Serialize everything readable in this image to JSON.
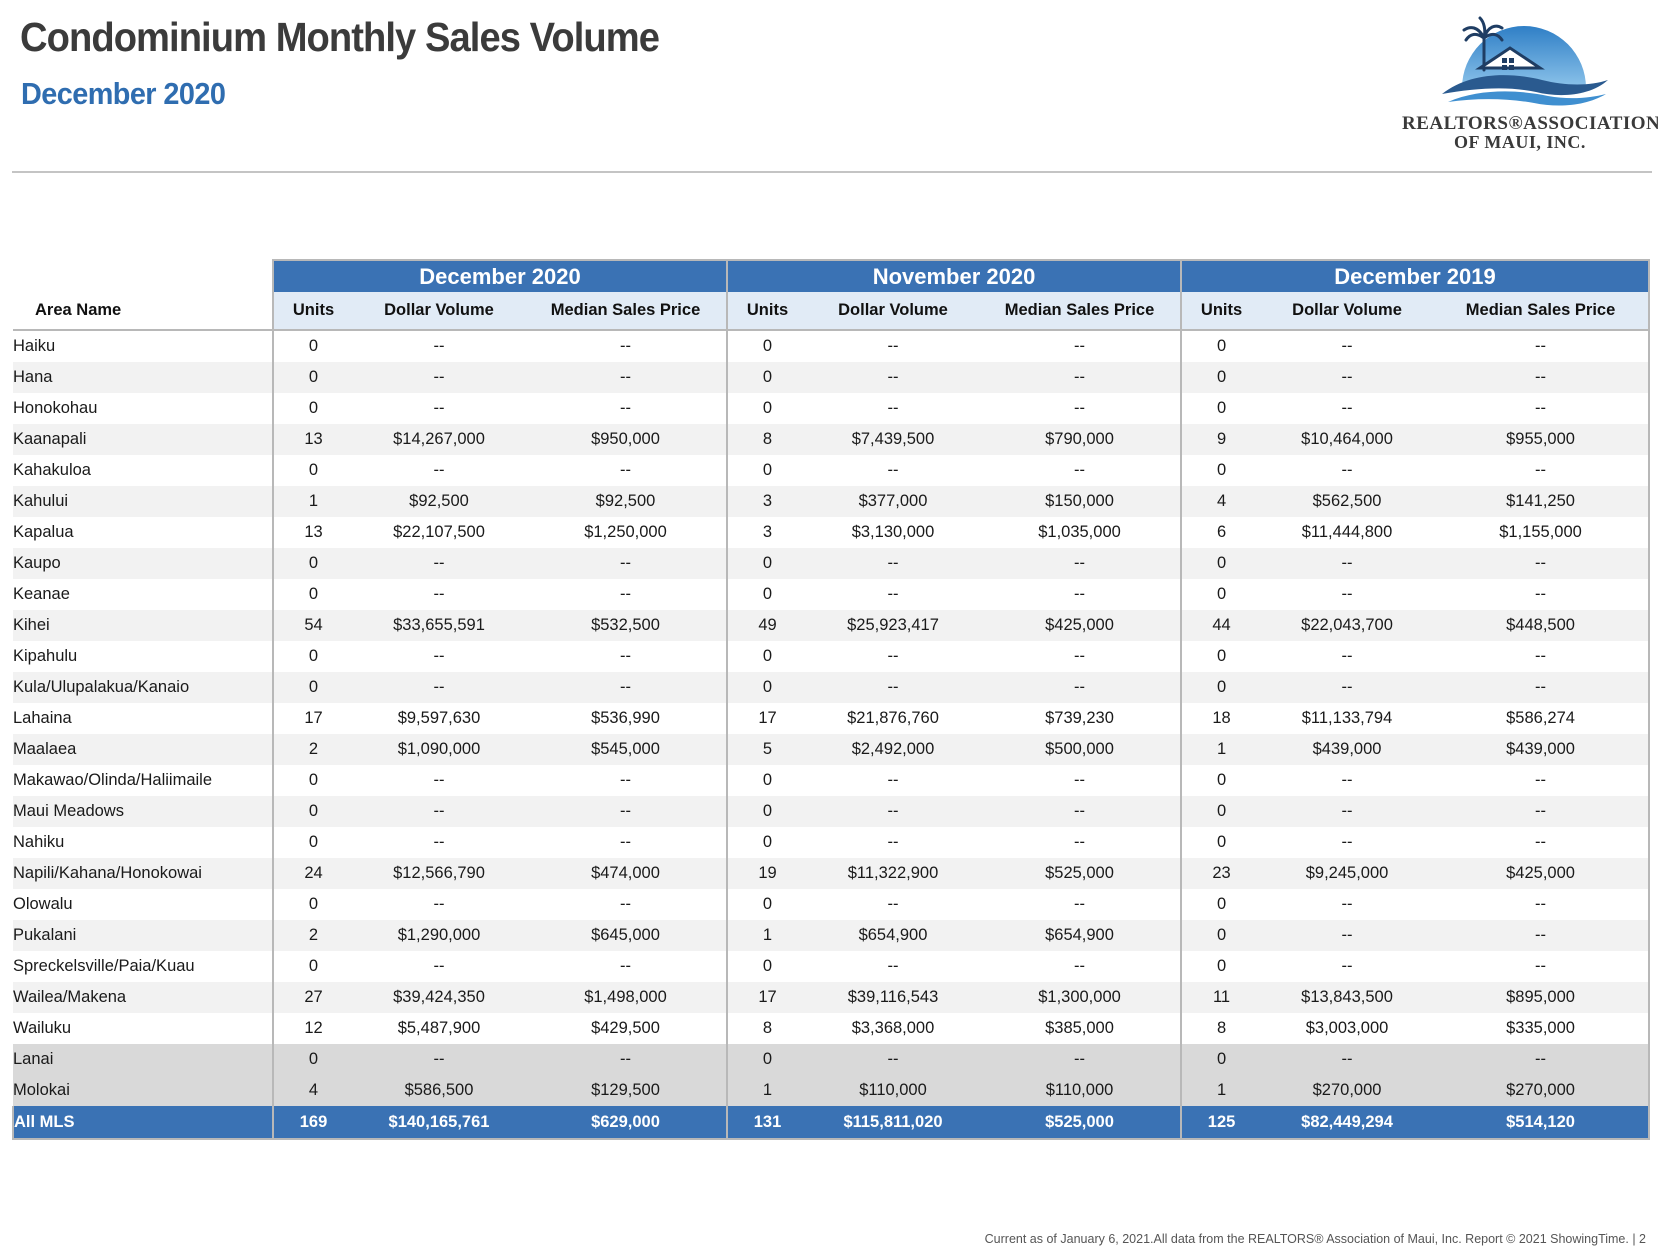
{
  "header": {
    "title": "Condominium Monthly Sales Volume",
    "subtitle": "December 2020"
  },
  "logo": {
    "line1": "REALTORS®ASSOCIATION",
    "line2": "OF MAUI, INC.",
    "colors": {
      "sky": "#3f8fd0",
      "wave": "#2a5a8f",
      "palm": "#1f3d63"
    }
  },
  "table": {
    "area_header": "Area Name",
    "periods": [
      "December 2020",
      "November 2020",
      "December 2019"
    ],
    "subheaders": [
      "Units",
      "Dollar Volume",
      "Median Sales Price"
    ],
    "rows": [
      {
        "area": "Haiku",
        "group": "main",
        "values": [
          "0",
          "--",
          "--",
          "0",
          "--",
          "--",
          "0",
          "--",
          "--"
        ]
      },
      {
        "area": "Hana",
        "group": "main",
        "values": [
          "0",
          "--",
          "--",
          "0",
          "--",
          "--",
          "0",
          "--",
          "--"
        ]
      },
      {
        "area": "Honokohau",
        "group": "main",
        "values": [
          "0",
          "--",
          "--",
          "0",
          "--",
          "--",
          "0",
          "--",
          "--"
        ]
      },
      {
        "area": "Kaanapali",
        "group": "main",
        "values": [
          "13",
          "$14,267,000",
          "$950,000",
          "8",
          "$7,439,500",
          "$790,000",
          "9",
          "$10,464,000",
          "$955,000"
        ]
      },
      {
        "area": "Kahakuloa",
        "group": "main",
        "values": [
          "0",
          "--",
          "--",
          "0",
          "--",
          "--",
          "0",
          "--",
          "--"
        ]
      },
      {
        "area": "Kahului",
        "group": "main",
        "values": [
          "1",
          "$92,500",
          "$92,500",
          "3",
          "$377,000",
          "$150,000",
          "4",
          "$562,500",
          "$141,250"
        ]
      },
      {
        "area": "Kapalua",
        "group": "main",
        "values": [
          "13",
          "$22,107,500",
          "$1,250,000",
          "3",
          "$3,130,000",
          "$1,035,000",
          "6",
          "$11,444,800",
          "$1,155,000"
        ]
      },
      {
        "area": "Kaupo",
        "group": "main",
        "values": [
          "0",
          "--",
          "--",
          "0",
          "--",
          "--",
          "0",
          "--",
          "--"
        ]
      },
      {
        "area": "Keanae",
        "group": "main",
        "values": [
          "0",
          "--",
          "--",
          "0",
          "--",
          "--",
          "0",
          "--",
          "--"
        ]
      },
      {
        "area": "Kihei",
        "group": "main",
        "values": [
          "54",
          "$33,655,591",
          "$532,500",
          "49",
          "$25,923,417",
          "$425,000",
          "44",
          "$22,043,700",
          "$448,500"
        ]
      },
      {
        "area": "Kipahulu",
        "group": "main",
        "values": [
          "0",
          "--",
          "--",
          "0",
          "--",
          "--",
          "0",
          "--",
          "--"
        ]
      },
      {
        "area": "Kula/Ulupalakua/Kanaio",
        "group": "main",
        "values": [
          "0",
          "--",
          "--",
          "0",
          "--",
          "--",
          "0",
          "--",
          "--"
        ]
      },
      {
        "area": "Lahaina",
        "group": "main",
        "values": [
          "17",
          "$9,597,630",
          "$536,990",
          "17",
          "$21,876,760",
          "$739,230",
          "18",
          "$11,133,794",
          "$586,274"
        ]
      },
      {
        "area": "Maalaea",
        "group": "main",
        "values": [
          "2",
          "$1,090,000",
          "$545,000",
          "5",
          "$2,492,000",
          "$500,000",
          "1",
          "$439,000",
          "$439,000"
        ]
      },
      {
        "area": "Makawao/Olinda/Haliimaile",
        "group": "main",
        "values": [
          "0",
          "--",
          "--",
          "0",
          "--",
          "--",
          "0",
          "--",
          "--"
        ]
      },
      {
        "area": "Maui Meadows",
        "group": "main",
        "values": [
          "0",
          "--",
          "--",
          "0",
          "--",
          "--",
          "0",
          "--",
          "--"
        ]
      },
      {
        "area": "Nahiku",
        "group": "main",
        "values": [
          "0",
          "--",
          "--",
          "0",
          "--",
          "--",
          "0",
          "--",
          "--"
        ]
      },
      {
        "area": "Napili/Kahana/Honokowai",
        "group": "main",
        "values": [
          "24",
          "$12,566,790",
          "$474,000",
          "19",
          "$11,322,900",
          "$525,000",
          "23",
          "$9,245,000",
          "$425,000"
        ]
      },
      {
        "area": "Olowalu",
        "group": "main",
        "values": [
          "0",
          "--",
          "--",
          "0",
          "--",
          "--",
          "0",
          "--",
          "--"
        ]
      },
      {
        "area": "Pukalani",
        "group": "main",
        "values": [
          "2",
          "$1,290,000",
          "$645,000",
          "1",
          "$654,900",
          "$654,900",
          "0",
          "--",
          "--"
        ]
      },
      {
        "area": "Spreckelsville/Paia/Kuau",
        "group": "main",
        "values": [
          "0",
          "--",
          "--",
          "0",
          "--",
          "--",
          "0",
          "--",
          "--"
        ]
      },
      {
        "area": "Wailea/Makena",
        "group": "main",
        "values": [
          "27",
          "$39,424,350",
          "$1,498,000",
          "17",
          "$39,116,543",
          "$1,300,000",
          "11",
          "$13,843,500",
          "$895,000"
        ]
      },
      {
        "area": "Wailuku",
        "group": "main",
        "values": [
          "12",
          "$5,487,900",
          "$429,500",
          "8",
          "$3,368,000",
          "$385,000",
          "8",
          "$3,003,000",
          "$335,000"
        ]
      },
      {
        "area": "Lanai",
        "group": "island",
        "values": [
          "0",
          "--",
          "--",
          "0",
          "--",
          "--",
          "0",
          "--",
          "--"
        ]
      },
      {
        "area": "Molokai",
        "group": "island",
        "values": [
          "4",
          "$586,500",
          "$129,500",
          "1",
          "$110,000",
          "$110,000",
          "1",
          "$270,000",
          "$270,000"
        ]
      }
    ],
    "total": {
      "area": "All MLS",
      "values": [
        "169",
        "$140,165,761",
        "$629,000",
        "131",
        "$115,811,020",
        "$525,000",
        "125",
        "$82,449,294",
        "$514,120"
      ]
    }
  },
  "footer": {
    "text": "Current as of January 6, 2021.All data from the REALTORS® Association of Maui, Inc. Report © 2021 ShowingTime.  |  2"
  },
  "colors": {
    "header_blue": "#3a72b4",
    "subheader_bg": "#e1ebf6",
    "stripe": "#f2f2f2",
    "island_bg": "#d9d9d9",
    "title_gray": "#3b3b3b",
    "subtitle_blue": "#2f6db0"
  }
}
